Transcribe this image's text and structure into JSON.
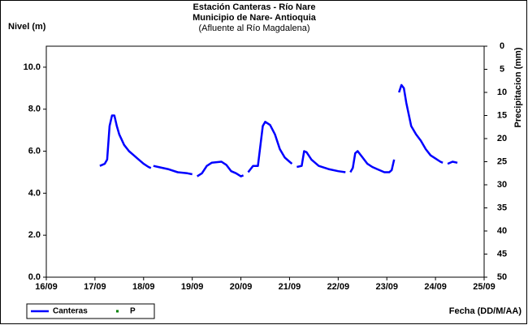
{
  "chart_data": {
    "type": "line",
    "title": "Estación Canteras - Río Nare",
    "subtitle": "Municipio de Nare- Antioquia",
    "note": "(Afluente al Río Magdalena)",
    "ylabel": "Nivel (m)",
    "y2label": "Precipitacion (mm)",
    "xlabel": "Fecha (DD/M/AA)",
    "xlim": [
      16,
      25
    ],
    "xticks": [
      {
        "value": 16,
        "label": "16/09"
      },
      {
        "value": 17,
        "label": "17/09"
      },
      {
        "value": 18,
        "label": "18/09"
      },
      {
        "value": 19,
        "label": "19/09"
      },
      {
        "value": 20,
        "label": "20/09"
      },
      {
        "value": 21,
        "label": "21/09"
      },
      {
        "value": 22,
        "label": "22/09"
      },
      {
        "value": 23,
        "label": "23/09"
      },
      {
        "value": 24,
        "label": "24/09"
      },
      {
        "value": 25,
        "label": "25/09"
      }
    ],
    "ylim": [
      0,
      11
    ],
    "yticks": [
      {
        "value": 0,
        "label": "0.0"
      },
      {
        "value": 2,
        "label": "2.0"
      },
      {
        "value": 4,
        "label": "4.0"
      },
      {
        "value": 6,
        "label": "6.0"
      },
      {
        "value": 8,
        "label": "8.0"
      },
      {
        "value": 10,
        "label": "10.0"
      }
    ],
    "y2lim": [
      0,
      50
    ],
    "y2ticks": [
      0,
      5,
      10,
      15,
      20,
      25,
      30,
      35,
      40,
      45,
      50
    ],
    "y2_inverted": true,
    "grid": false,
    "legend": "bottom-left",
    "series": [
      {
        "name": "Canteras",
        "color": "#0000ff",
        "x": [
          17.1,
          17.2,
          17.25,
          17.3,
          17.35,
          17.4,
          17.45,
          17.5,
          17.6,
          17.7,
          17.8,
          17.9,
          18.0,
          18.1,
          18.15,
          18.17,
          18.2,
          18.3,
          18.5,
          18.7,
          18.9,
          19.0,
          19.05,
          19.1,
          19.2,
          19.3,
          19.4,
          19.6,
          19.7,
          19.8,
          19.9,
          20.0,
          20.05,
          20.1,
          20.15,
          20.25,
          20.35,
          20.45,
          20.5,
          20.6,
          20.7,
          20.8,
          20.9,
          21.0,
          21.05,
          21.1,
          21.15,
          21.25,
          21.3,
          21.35,
          21.45,
          21.6,
          21.8,
          22.0,
          22.15,
          22.2,
          22.25,
          22.3,
          22.35,
          22.4,
          22.5,
          22.6,
          22.7,
          22.8,
          22.95,
          23.05,
          23.1,
          23.15,
          23.2,
          23.25,
          23.3,
          23.35,
          23.4,
          23.5,
          23.6,
          23.7,
          23.8,
          23.9,
          24.0,
          24.1,
          24.15,
          24.2,
          24.25,
          24.35,
          24.45
        ],
        "values": [
          5.3,
          5.4,
          5.6,
          7.2,
          7.7,
          7.7,
          7.2,
          6.8,
          6.3,
          6.0,
          5.8,
          5.6,
          5.4,
          5.25,
          5.2,
          null,
          5.3,
          5.25,
          5.15,
          5.0,
          4.95,
          4.9,
          null,
          4.8,
          4.95,
          5.3,
          5.45,
          5.5,
          5.35,
          5.05,
          4.95,
          4.8,
          4.85,
          null,
          5.0,
          5.3,
          5.3,
          7.2,
          7.4,
          7.25,
          6.8,
          6.1,
          5.7,
          5.5,
          5.4,
          null,
          5.25,
          5.3,
          6.0,
          5.95,
          5.6,
          5.3,
          5.15,
          5.05,
          5.0,
          null,
          5.0,
          5.2,
          5.9,
          6.0,
          5.7,
          5.4,
          5.25,
          5.15,
          5.0,
          5.0,
          5.1,
          5.6,
          null,
          8.8,
          9.15,
          9.0,
          8.3,
          7.2,
          6.8,
          6.5,
          6.1,
          5.8,
          5.65,
          5.5,
          5.45,
          null,
          5.4,
          5.5,
          5.45
        ]
      },
      {
        "name": "P",
        "color": "#008000",
        "axis": "y2",
        "x": [],
        "values": []
      }
    ]
  }
}
